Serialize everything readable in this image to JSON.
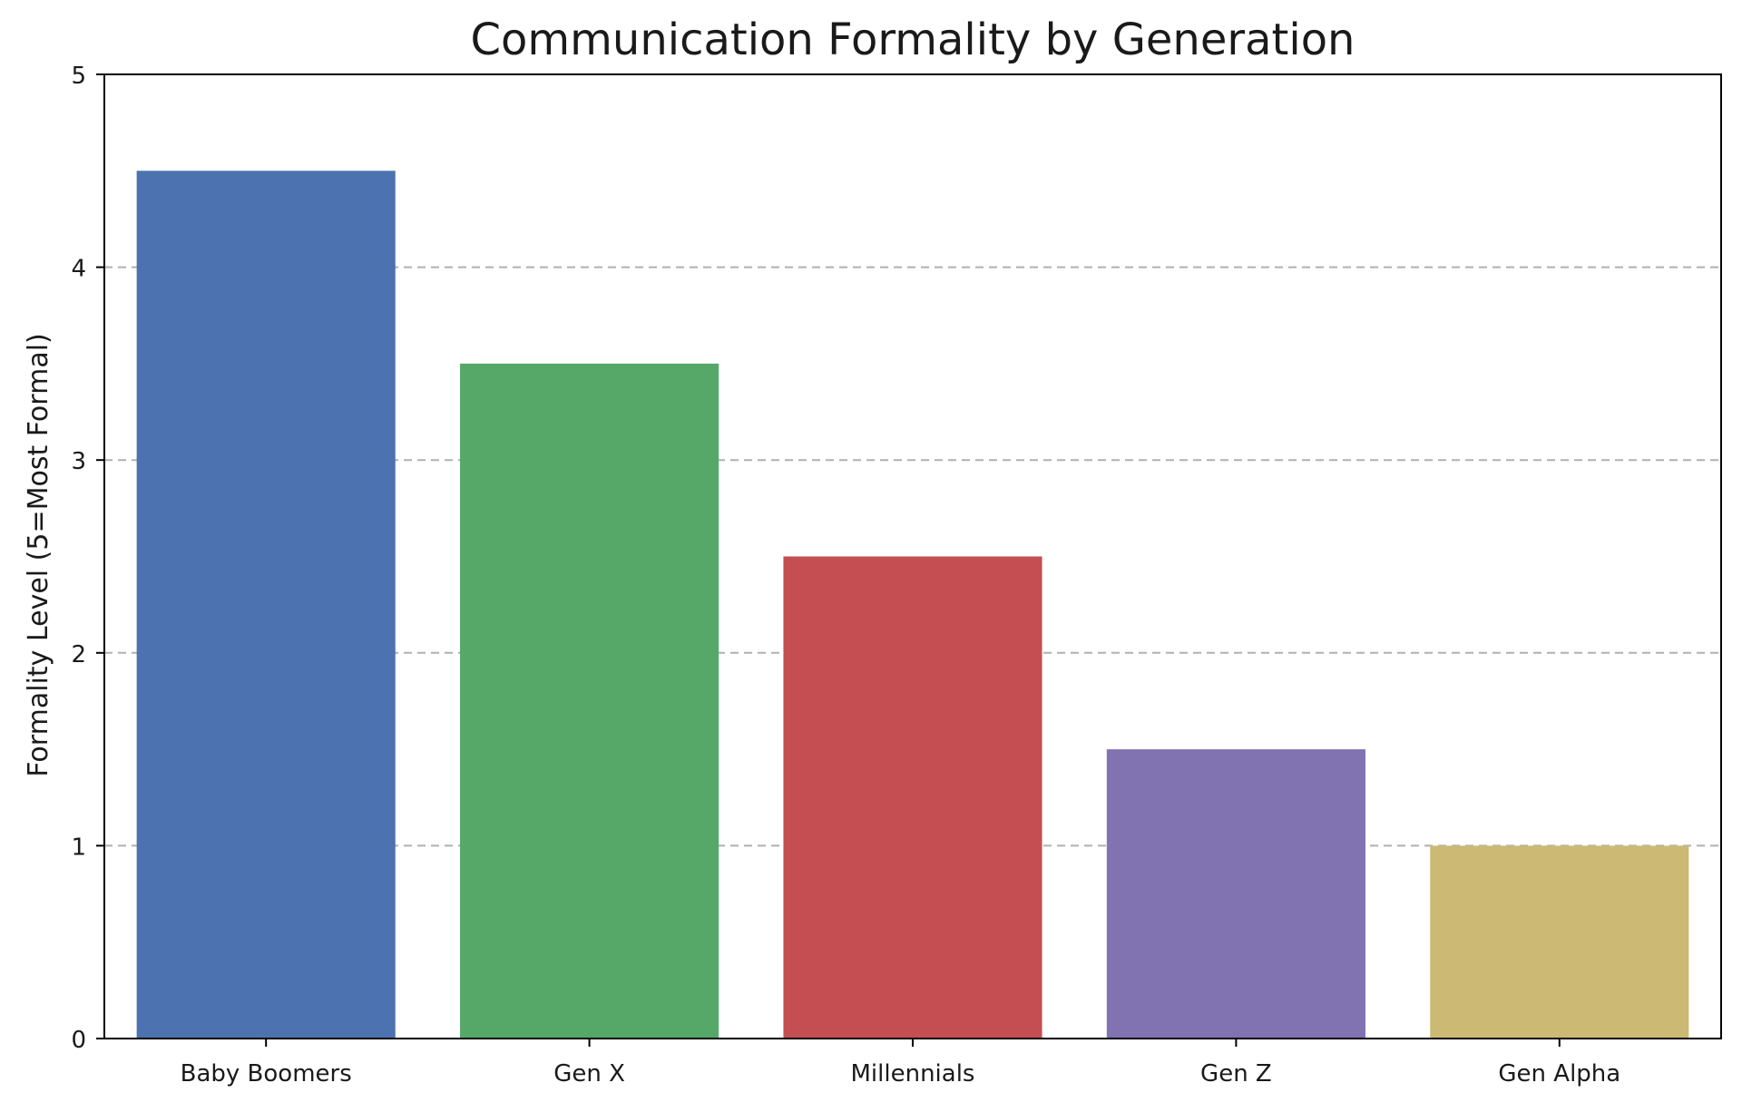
{
  "chart_data": {
    "type": "bar",
    "title": "Communication Formality by Generation",
    "xlabel": "",
    "ylabel": "Formality Level (5=Most Formal)",
    "categories": [
      "Baby Boomers",
      "Gen X",
      "Millennials",
      "Gen Z",
      "Gen Alpha"
    ],
    "values": [
      4.5,
      3.5,
      2.5,
      1.5,
      1.0
    ],
    "colors": [
      "#4c72b0",
      "#55a868",
      "#c44e52",
      "#8172b2",
      "#ccb974"
    ],
    "ylim": [
      0,
      5
    ],
    "yticks": [
      0,
      1,
      2,
      3,
      4,
      5
    ],
    "grid": {
      "axis": "y",
      "style": "dashed",
      "color": "#b0b0b0"
    }
  }
}
